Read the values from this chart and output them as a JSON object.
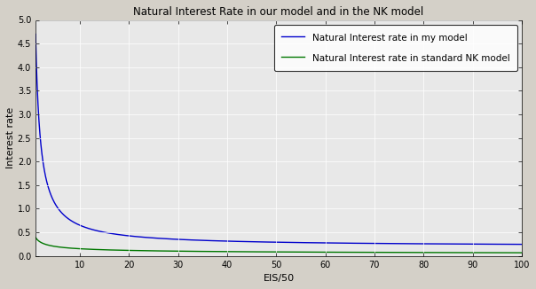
{
  "title": "Natural Interest Rate in our model and in the NK model",
  "xlabel": "EIS/50",
  "ylabel": "Interest rate",
  "xlim": [
    1,
    100
  ],
  "ylim": [
    0,
    5
  ],
  "yticks": [
    0,
    0.5,
    1.0,
    1.5,
    2.0,
    2.5,
    3.0,
    3.5,
    4.0,
    4.5,
    5.0
  ],
  "xticks": [
    10,
    20,
    30,
    40,
    50,
    60,
    70,
    80,
    90,
    100
  ],
  "blue_line_label": "Natural Interest rate in my model",
  "green_line_label": "Natural Interest rate in standard NK model",
  "blue_color": "#0000cc",
  "green_color": "#007700",
  "line_width": 1.0,
  "x_start": 1.0,
  "x_end": 100,
  "title_fontsize": 8.5,
  "label_fontsize": 8,
  "tick_fontsize": 7,
  "legend_fontsize": 7.5,
  "bg_color": "#e8e8e8",
  "fig_bg": "#d4d0c8"
}
